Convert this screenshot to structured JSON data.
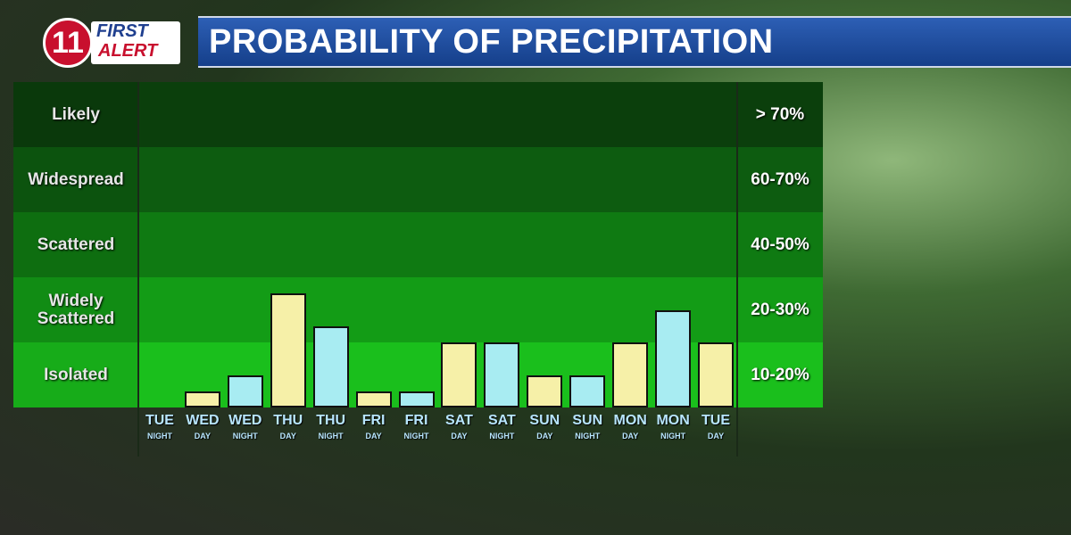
{
  "header": {
    "logo_number": "11",
    "logo_line1": "FIRST",
    "logo_line2": "ALERT"
  },
  "chart_data": {
    "type": "bar",
    "title": "PROBABILITY OF PRECIPITATION",
    "bands": [
      {
        "label": "Likely",
        "range": "> 70%",
        "color": "#0b3f0c"
      },
      {
        "label": "Widespread",
        "range": "60-70%",
        "color": "#0d5c10"
      },
      {
        "label": "Scattered",
        "range": "40-50%",
        "color": "#0f7a12"
      },
      {
        "label": "Widely Scattered",
        "range": "20-30%",
        "color": "#139c16"
      },
      {
        "label": "Isolated",
        "range": "10-20%",
        "color": "#1abf1c"
      }
    ],
    "categories": [
      {
        "day": "TUE",
        "period": "NIGHT"
      },
      {
        "day": "WED",
        "period": "DAY"
      },
      {
        "day": "WED",
        "period": "NIGHT"
      },
      {
        "day": "THU",
        "period": "DAY"
      },
      {
        "day": "THU",
        "period": "NIGHT"
      },
      {
        "day": "FRI",
        "period": "DAY"
      },
      {
        "day": "FRI",
        "period": "NIGHT"
      },
      {
        "day": "SAT",
        "period": "DAY"
      },
      {
        "day": "SAT",
        "period": "NIGHT"
      },
      {
        "day": "SUN",
        "period": "DAY"
      },
      {
        "day": "SUN",
        "period": "NIGHT"
      },
      {
        "day": "MON",
        "period": "DAY"
      },
      {
        "day": "MON",
        "period": "NIGHT"
      },
      {
        "day": "TUE",
        "period": "DAY"
      }
    ],
    "values": [
      0,
      0.25,
      0.5,
      1.75,
      1.25,
      0.25,
      0.25,
      1,
      1,
      0.5,
      0.5,
      1,
      1.5,
      1
    ],
    "bar_colors": [
      "#a8ecf2",
      "#f6f0a8",
      "#a8ecf2",
      "#f6f0a8",
      "#a8ecf2",
      "#f6f0a8",
      "#a8ecf2",
      "#f6f0a8",
      "#a8ecf2",
      "#f6f0a8",
      "#a8ecf2",
      "#f6f0a8",
      "#a8ecf2",
      "#f6f0a8"
    ],
    "ylim": [
      0,
      5
    ]
  }
}
